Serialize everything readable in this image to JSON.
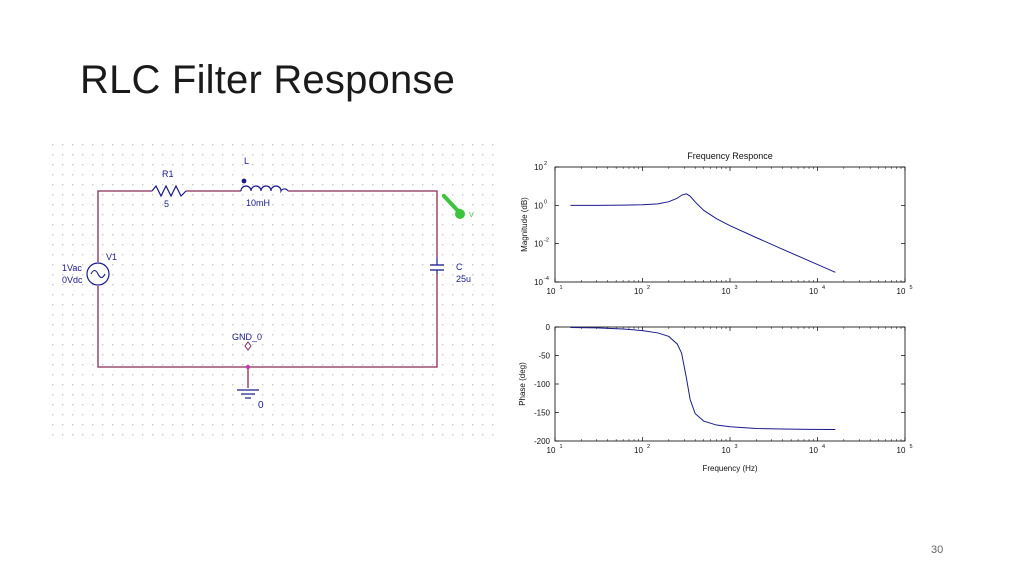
{
  "slide": {
    "title": "RLC Filter Response",
    "page_number": "30"
  },
  "schematic": {
    "source": {
      "ref": "V1",
      "ac": "1Vac",
      "dc": "0Vdc"
    },
    "resistor": {
      "ref": "R1",
      "value": "5"
    },
    "inductor": {
      "ref": "L",
      "value": "10mH"
    },
    "capacitor": {
      "ref": "C",
      "value": "25u"
    },
    "ground": {
      "net": "GND_0",
      "label": "0"
    },
    "probe_label": "V",
    "colors": {
      "wire": "#8a2a55",
      "component": "#1a1a8a",
      "probe": "#3cc43c",
      "grid_dot": "#c8c8c8"
    }
  },
  "chart_data": [
    {
      "type": "line",
      "title": "Frequency Responce",
      "xlabel": "",
      "ylabel": "Magnitude (dB)",
      "xscale": "log",
      "yscale": "log",
      "xlim": [
        10,
        100000
      ],
      "ylim": [
        0.0001,
        100
      ],
      "x_ticks": [
        {
          "label": "10",
          "exp": "1"
        },
        {
          "label": "10",
          "exp": "2"
        },
        {
          "label": "10",
          "exp": "3"
        },
        {
          "label": "10",
          "exp": "4"
        },
        {
          "label": "10",
          "exp": "5"
        }
      ],
      "y_ticks": [
        {
          "label": "10",
          "exp": "-4"
        },
        {
          "label": "10",
          "exp": "-2"
        },
        {
          "label": "10",
          "exp": "0"
        },
        {
          "label": "10",
          "exp": "2"
        }
      ],
      "line_color": "#1a1a8a",
      "grid": false,
      "series": [
        {
          "x": [
            15,
            30,
            60,
            100,
            150,
            200,
            250,
            280,
            318,
            350,
            400,
            500,
            700,
            1000,
            2000,
            4000,
            8000,
            16000
          ],
          "y": [
            1.0,
            1.0,
            1.02,
            1.07,
            1.2,
            1.55,
            2.35,
            3.4,
            4.0,
            3.0,
            1.5,
            0.55,
            0.2,
            0.087,
            0.0207,
            0.0051,
            0.00127,
            0.00032
          ]
        }
      ]
    },
    {
      "type": "line",
      "title": "",
      "xlabel": "Frequency (Hz)",
      "ylabel": "Phase (deg)",
      "xscale": "log",
      "xlim": [
        10,
        100000
      ],
      "ylim": [
        -200,
        0
      ],
      "x_ticks": [
        {
          "label": "10",
          "exp": "1"
        },
        {
          "label": "10",
          "exp": "2"
        },
        {
          "label": "10",
          "exp": "3"
        },
        {
          "label": "10",
          "exp": "4"
        },
        {
          "label": "10",
          "exp": "5"
        }
      ],
      "y_ticks": [
        "0",
        "-50",
        "-100",
        "-150",
        "-200"
      ],
      "line_color": "#1a1a8a",
      "grid": false,
      "series": [
        {
          "x": [
            15,
            30,
            60,
            100,
            150,
            200,
            250,
            280,
            318,
            350,
            400,
            500,
            700,
            1000,
            2000,
            4000,
            8000,
            16000
          ],
          "y": [
            -0.8,
            -1.6,
            -3.5,
            -6.3,
            -10.4,
            -16.6,
            -30,
            -46,
            -90,
            -127,
            -152,
            -165,
            -172,
            -175,
            -178,
            -179,
            -179.6,
            -179.9
          ]
        }
      ]
    }
  ]
}
